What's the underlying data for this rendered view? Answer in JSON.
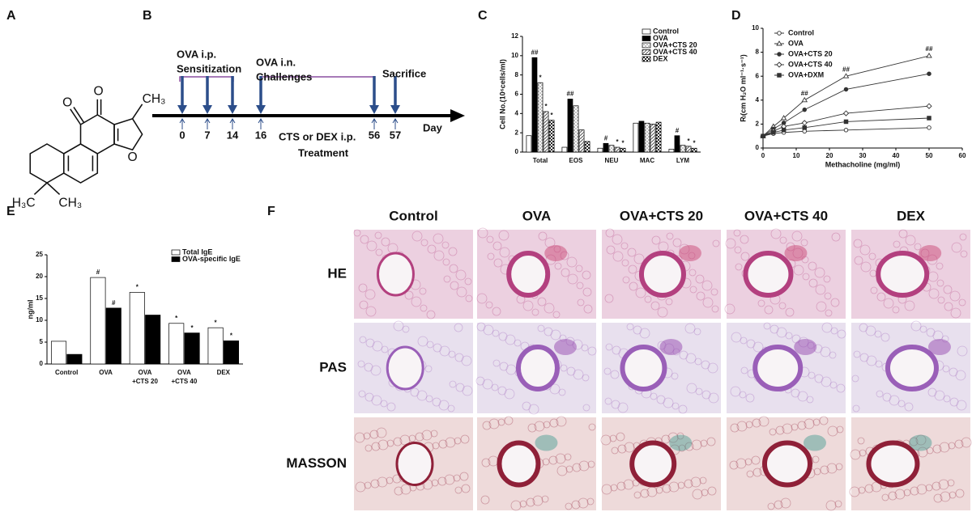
{
  "panel_labels": [
    "A",
    "B",
    "C",
    "D",
    "E",
    "F"
  ],
  "structure": {
    "atoms": [
      "O",
      "O",
      "O",
      "H₃C",
      "CH₃",
      "CH₃"
    ]
  },
  "timeline": {
    "events": [
      [
        "OVA i.p.",
        "Sensitization"
      ],
      [
        "OVA i.n.",
        "Challenges"
      ],
      [
        "Sacrifice"
      ],
      [
        "CTS or DEX i.p.",
        "Treatment"
      ]
    ],
    "axis_label": "Day",
    "days": [
      0,
      7,
      14,
      16,
      56,
      57
    ]
  },
  "chart_data": [
    {
      "type": "bar",
      "ylabel": "Cell No.(10⁶cells/ml)",
      "categories": [
        "Total",
        "EOS",
        "NEU",
        "MAC",
        "LYM"
      ],
      "ylim": [
        0,
        12
      ],
      "yticks": [
        0,
        2,
        4,
        6,
        8,
        10,
        12
      ],
      "legend": "top-right",
      "series": [
        {
          "name": "Control",
          "color": "#ffffff",
          "pattern": "solid",
          "values": [
            1.7,
            0.5,
            0.4,
            3.0,
            0.3
          ],
          "markers": [
            null,
            null,
            null,
            null,
            null
          ]
        },
        {
          "name": "OVA",
          "color": "#000000",
          "pattern": "solid",
          "values": [
            9.8,
            5.5,
            0.9,
            3.2,
            1.7
          ],
          "markers": [
            "##",
            "##",
            "#",
            null,
            "#"
          ]
        },
        {
          "name": "OVA+CTS 20",
          "color": "#777777",
          "pattern": "dots",
          "values": [
            7.2,
            4.8,
            0.7,
            3.0,
            0.7
          ],
          "markers": [
            "*",
            null,
            null,
            null,
            null
          ]
        },
        {
          "name": "OVA+CTS 40",
          "color": "#555555",
          "pattern": "diagonal",
          "values": [
            4.2,
            2.3,
            0.5,
            2.9,
            0.6
          ],
          "markers": [
            "*",
            null,
            "*",
            null,
            "*"
          ]
        },
        {
          "name": "DEX",
          "color": "#222222",
          "pattern": "checker",
          "values": [
            3.3,
            1.1,
            0.4,
            3.1,
            0.4
          ],
          "markers": [
            "*",
            null,
            "*",
            null,
            "*"
          ]
        }
      ]
    },
    {
      "type": "line",
      "xlabel": "Methacholine (mg/ml)",
      "ylabel": "Rₗ(cm H₂O ml⁻¹·s⁻¹)",
      "x": [
        0,
        3.125,
        6.25,
        12.5,
        25,
        50
      ],
      "xlim": [
        0,
        60
      ],
      "xticks": [
        0,
        10,
        20,
        30,
        40,
        50,
        60
      ],
      "ylim": [
        0,
        10
      ],
      "yticks": [
        0,
        2,
        4,
        6,
        8,
        10
      ],
      "legend": "top-left",
      "series": [
        {
          "name": "Control",
          "color": "#333333",
          "marker": "open-circle",
          "values": [
            1.0,
            1.2,
            1.3,
            1.4,
            1.5,
            1.7
          ]
        },
        {
          "name": "OVA",
          "color": "#333333",
          "marker": "open-triangle",
          "values": [
            1.0,
            1.8,
            2.5,
            4.0,
            6.0,
            7.7
          ],
          "markers": [
            null,
            null,
            null,
            "##",
            "##",
            "##"
          ]
        },
        {
          "name": "OVA+CTS 20",
          "color": "#333333",
          "marker": "filled-circle",
          "values": [
            1.0,
            1.6,
            2.1,
            3.2,
            4.9,
            6.2
          ]
        },
        {
          "name": "OVA+CTS 40",
          "color": "#333333",
          "marker": "open-diamond",
          "values": [
            1.0,
            1.4,
            1.8,
            2.1,
            2.9,
            3.5
          ]
        },
        {
          "name": "OVA+DXM",
          "color": "#333333",
          "marker": "filled-square",
          "values": [
            1.0,
            1.3,
            1.5,
            1.7,
            2.2,
            2.5
          ]
        }
      ]
    },
    {
      "type": "bar",
      "ylabel": "ng/ml",
      "categories": [
        [
          "Control"
        ],
        [
          "OVA"
        ],
        [
          "OVA",
          "+CTS 20"
        ],
        [
          "OVA",
          "+CTS 40"
        ],
        [
          "DEX"
        ]
      ],
      "ylim": [
        0,
        25
      ],
      "yticks": [
        0,
        5,
        10,
        15,
        20,
        25
      ],
      "legend": "top-right",
      "series": [
        {
          "name": "Total IgE",
          "color": "#ffffff",
          "pattern": "solid",
          "values": [
            5.2,
            19.8,
            16.4,
            9.3,
            8.3
          ],
          "markers": [
            null,
            "#",
            "*",
            "*",
            "*"
          ]
        },
        {
          "name": "OVA-specific IgE",
          "color": "#000000",
          "pattern": "solid",
          "values": [
            2.2,
            12.8,
            11.2,
            7.1,
            5.3
          ],
          "markers": [
            null,
            "#",
            null,
            "*",
            "*"
          ]
        }
      ]
    }
  ],
  "histology": {
    "columns": [
      "Control",
      "OVA",
      "OVA+CTS 20",
      "OVA+CTS 40",
      "DEX"
    ],
    "rows": [
      "HE",
      "PAS",
      "MASSON"
    ]
  }
}
